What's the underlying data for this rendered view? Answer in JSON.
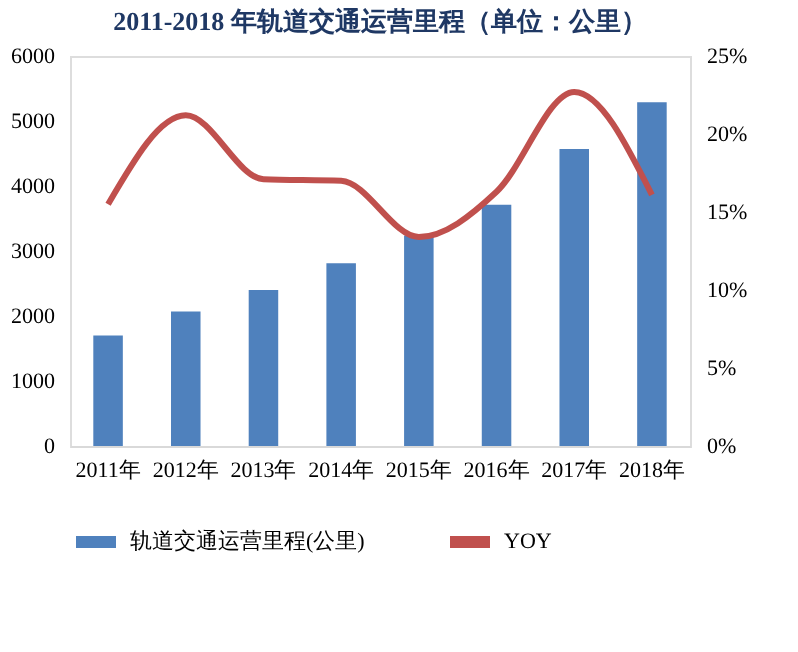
{
  "chart_data": {
    "type": "bar",
    "title": "2011-2018 年轨道交通运营里程（单位：公里）",
    "categories": [
      "2011年",
      "2012年",
      "2013年",
      "2014年",
      "2015年",
      "2016年",
      "2017年",
      "2018年"
    ],
    "series": [
      {
        "name": "轨道交通运营里程(公里)",
        "color": "#4f81bd",
        "values": [
          1700,
          2070,
          2400,
          2810,
          3240,
          3710,
          4570,
          5290
        ]
      },
      {
        "name": "YOY",
        "type": "line",
        "axis": "y2",
        "color": "#c0504d",
        "values": [
          0.155,
          0.212,
          0.171,
          0.17,
          0.134,
          0.163,
          0.227,
          0.161
        ]
      }
    ],
    "ylim": [
      0,
      6000
    ],
    "yticks": [
      0,
      1000,
      2000,
      3000,
      4000,
      5000,
      6000
    ],
    "y2lim": [
      0,
      0.25
    ],
    "y2ticks": [
      {
        "value": 0,
        "label": "0%"
      },
      {
        "value": 0.05,
        "label": "5%"
      },
      {
        "value": 0.1,
        "label": "10%"
      },
      {
        "value": 0.15,
        "label": "15%"
      },
      {
        "value": 0.2,
        "label": "20%"
      },
      {
        "value": 0.25,
        "label": "25%"
      }
    ],
    "grid": false,
    "legend": "bottom",
    "marker": "none"
  }
}
